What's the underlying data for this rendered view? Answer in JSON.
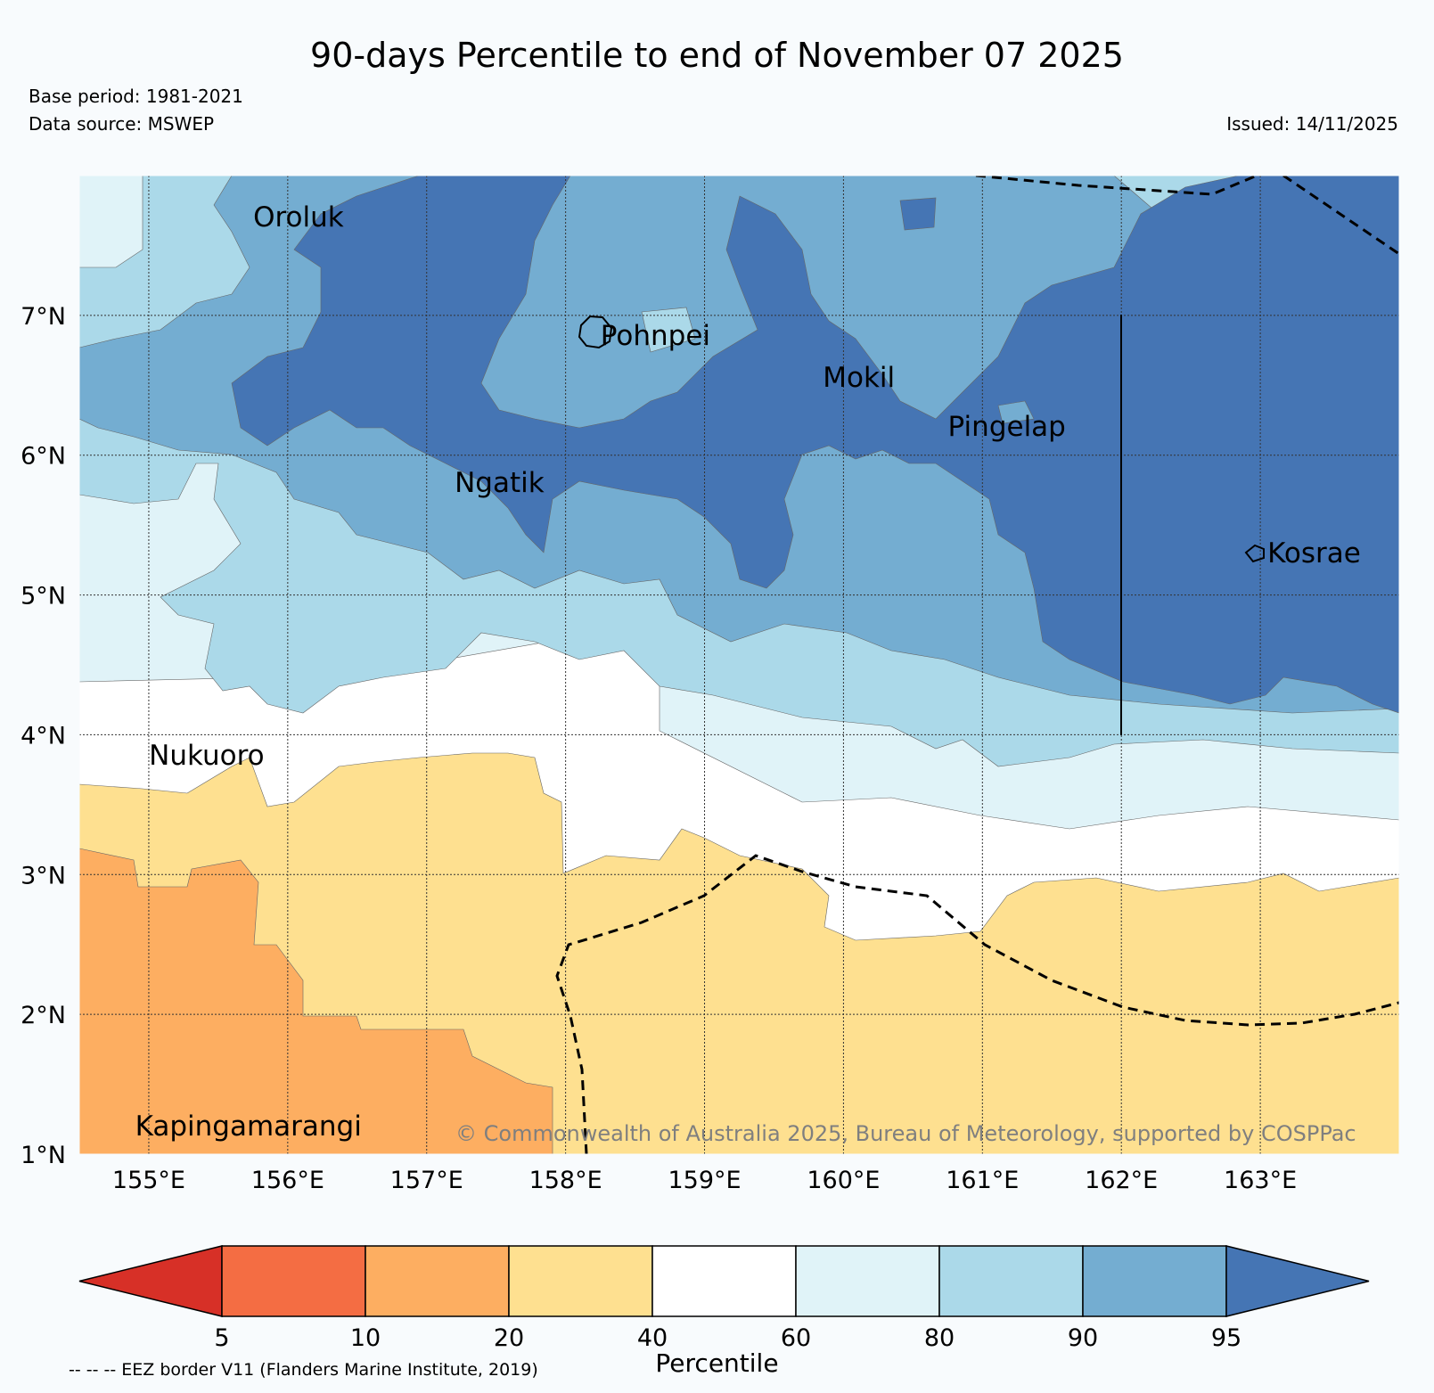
{
  "header": {
    "title": "90-days Percentile to end of November 07 2025",
    "base_period": "Base period: 1981-2021",
    "data_source": "Data source: MSWEP",
    "issued": "Issued: 14/11/2025"
  },
  "map": {
    "lat_range": [
      1,
      8
    ],
    "lon_range": [
      154.5,
      164.0
    ],
    "lat_ticks": [
      "1°N",
      "2°N",
      "3°N",
      "4°N",
      "5°N",
      "6°N",
      "7°N"
    ],
    "lon_ticks": [
      "155°E",
      "156°E",
      "157°E",
      "158°E",
      "159°E",
      "160°E",
      "161°E",
      "162°E",
      "163°E"
    ],
    "places": [
      {
        "name": "Oroluk",
        "lon": 155.7,
        "lat": 7.7
      },
      {
        "name": "Pohnpei",
        "lon": 158.2,
        "lat": 6.85
      },
      {
        "name": "Mokil",
        "lon": 159.8,
        "lat": 6.55
      },
      {
        "name": "Pingelap",
        "lon": 160.7,
        "lat": 6.2
      },
      {
        "name": "Ngatik",
        "lon": 157.15,
        "lat": 5.8
      },
      {
        "name": "Kosrae",
        "lon": 163.0,
        "lat": 5.3
      },
      {
        "name": "Nukuoro",
        "lon": 154.95,
        "lat": 3.85
      },
      {
        "name": "Kapingamarangi",
        "lon": 154.85,
        "lat": 1.2
      }
    ],
    "copyright": "© Commonwealth of Australia 2025, Bureau of Meteorology, supported by COSPPac"
  },
  "legend": {
    "label": "Percentile",
    "ticks": [
      "5",
      "10",
      "20",
      "40",
      "60",
      "80",
      "90",
      "95"
    ],
    "colors": [
      "#d73027",
      "#f46d43",
      "#fdae61",
      "#fee090",
      "#ffffff",
      "#e0f3f8",
      "#abd9e9",
      "#74add1",
      "#4575b4"
    ],
    "eez_note": "-- -- -- EEZ border V11 (Flanders Marine Institute, 2019)"
  },
  "colors": {
    "p5_10": "#f46d43",
    "p10_20": "#fdae61",
    "p20_40": "#fee090",
    "p40_60": "#ffffff",
    "p60_80": "#e0f3f8",
    "p80_90": "#abd9e9",
    "p90_95": "#74add1",
    "p95plus": "#4575b4"
  }
}
